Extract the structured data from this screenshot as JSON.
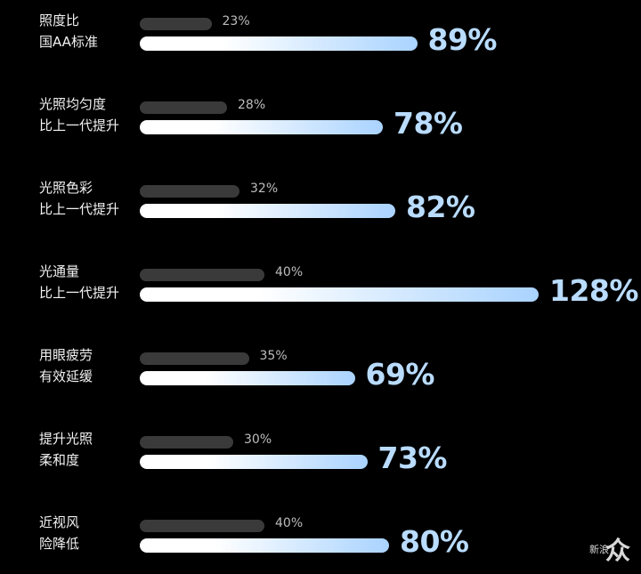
{
  "chart_data": {
    "type": "bar",
    "categories": [
      "照度比\n国AA标准",
      "光照均匀度\n比上一代提升",
      "光照色彩\n比上一代提升",
      "光通量\n比上一代提升",
      "用眼疲劳\n有效延缓",
      "提升光照\n柔和度",
      "近视风\n险降低"
    ],
    "labels_line1": [
      "照度比",
      "光照均匀度",
      "光照色彩",
      "光通量",
      "用眼疲劳",
      "提升光照",
      "近视风"
    ],
    "labels_line2": [
      "国AA标准",
      "比上一代提升",
      "比上一代提升",
      "比上一代提升",
      "有效延缓",
      "柔和度",
      "险降低"
    ],
    "series": [
      {
        "values": [
          23,
          28,
          32,
          40,
          35,
          30,
          40
        ],
        "display": [
          "23%",
          "28%",
          "32%",
          "40%",
          "35%",
          "30%",
          "40%"
        ],
        "color": "#3a3a3a"
      },
      {
        "values": [
          89,
          78,
          82,
          128,
          69,
          73,
          80
        ],
        "display": [
          "89%",
          "78%",
          "82%",
          "128%",
          "69%",
          "73%",
          "80%"
        ],
        "color": "#b9dcff"
      }
    ],
    "unit": "%",
    "grid": false,
    "legend": "none"
  },
  "watermark": {
    "main": "众",
    "side": "新浪"
  }
}
